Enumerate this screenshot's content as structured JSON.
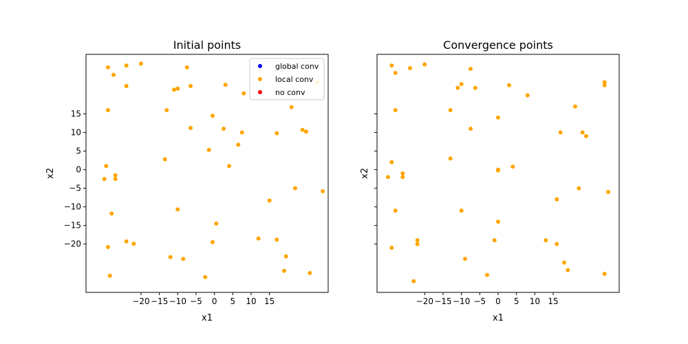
{
  "chart_data": [
    {
      "type": "scatter",
      "title": "Initial points",
      "xlabel": "x1",
      "ylabel": "x2",
      "xlim": [
        -35,
        31
      ],
      "ylim": [
        -33,
        31
      ],
      "x_ticks": [
        -20,
        -15,
        -10,
        -5,
        0,
        5,
        10,
        15
      ],
      "y_ticks": [
        15,
        10,
        5,
        0,
        -5,
        -10,
        -15,
        -20
      ],
      "legend": {
        "position": "top-right",
        "entries": [
          {
            "label": "global conv",
            "color": "#0000ff"
          },
          {
            "label": "local conv",
            "color": "#ffa500"
          },
          {
            "label": "no conv",
            "color": "#ff0000"
          }
        ]
      },
      "series": [
        {
          "name": "local conv",
          "color": "#ffa500",
          "points": [
            [
              -29,
              27.5
            ],
            [
              -27.5,
              25.5
            ],
            [
              -24,
              28
            ],
            [
              -20,
              28.5
            ],
            [
              -7.5,
              27.5
            ],
            [
              -24,
              22.5
            ],
            [
              -6.5,
              22.5
            ],
            [
              -11,
              21.5
            ],
            [
              -10,
              21.8
            ],
            [
              3,
              22.8
            ],
            [
              8,
              20.5
            ],
            [
              -29,
              16
            ],
            [
              -13,
              16
            ],
            [
              -0.5,
              14.5
            ],
            [
              21,
              16.8
            ],
            [
              -6.5,
              11.2
            ],
            [
              2.5,
              11
            ],
            [
              7.5,
              10
            ],
            [
              17,
              9.8
            ],
            [
              24,
              10.7
            ],
            [
              25,
              10.2
            ],
            [
              28,
              23.5
            ],
            [
              -1.5,
              5.3
            ],
            [
              6.5,
              6.7
            ],
            [
              -13.5,
              2.8
            ],
            [
              -29.5,
              1
            ],
            [
              4,
              1
            ],
            [
              -27,
              -1.5
            ],
            [
              -27,
              -2.5
            ],
            [
              -30,
              -2.5
            ],
            [
              22,
              -5
            ],
            [
              29.5,
              -5.8
            ],
            [
              15,
              -8.3
            ],
            [
              -10,
              -10.7
            ],
            [
              -28,
              -11.8
            ],
            [
              0.5,
              -14.5
            ],
            [
              -24,
              -19.3
            ],
            [
              -22,
              -19.9
            ],
            [
              -0.5,
              -19.5
            ],
            [
              -29,
              -20.8
            ],
            [
              12,
              -18.5
            ],
            [
              17,
              -18.8
            ],
            [
              -12,
              -23.5
            ],
            [
              -8.5,
              -24
            ],
            [
              19.5,
              -23.3
            ],
            [
              19,
              -27.2
            ],
            [
              26,
              -27.8
            ],
            [
              -28.5,
              -28.5
            ],
            [
              -2.5,
              -28.9
            ]
          ]
        }
      ]
    },
    {
      "type": "scatter",
      "title": "Convergence points",
      "xlabel": "x1",
      "ylabel": "x2",
      "xlim": [
        -33,
        33
      ],
      "ylim": [
        -33,
        31
      ],
      "x_ticks": [
        -20,
        -15,
        -10,
        -5,
        0,
        5,
        10,
        15
      ],
      "y_ticks": [
        15,
        10,
        5,
        0,
        -5,
        -10,
        -15,
        -20
      ],
      "series": [
        {
          "name": "local conv",
          "color": "#ffa500",
          "points": [
            [
              -29,
              28
            ],
            [
              -28,
              26
            ],
            [
              -24,
              27.3
            ],
            [
              -20,
              28.3
            ],
            [
              -7.5,
              27.1
            ],
            [
              -10,
              23
            ],
            [
              -11,
              22
            ],
            [
              -6.2,
              22
            ],
            [
              3,
              22.7
            ],
            [
              8,
              20
            ],
            [
              -28,
              16
            ],
            [
              -13,
              16
            ],
            [
              0,
              14
            ],
            [
              21,
              17
            ],
            [
              -7.5,
              11
            ],
            [
              17,
              10
            ],
            [
              23,
              10
            ],
            [
              24,
              9
            ],
            [
              29,
              23.5
            ],
            [
              29,
              22.7
            ],
            [
              -13,
              3
            ],
            [
              -29,
              2
            ],
            [
              -26,
              -1
            ],
            [
              -26,
              -2
            ],
            [
              -30,
              -2
            ],
            [
              0,
              0
            ],
            [
              0,
              -0.2
            ],
            [
              4,
              0.8
            ],
            [
              22,
              -5
            ],
            [
              30,
              -6
            ],
            [
              16,
              -8
            ],
            [
              -10,
              -11
            ],
            [
              -28,
              -11
            ],
            [
              0,
              -14
            ],
            [
              -22,
              -19
            ],
            [
              -22,
              -20
            ],
            [
              -1,
              -19
            ],
            [
              -29,
              -21
            ],
            [
              13,
              -19
            ],
            [
              16,
              -20
            ],
            [
              -9,
              -24
            ],
            [
              18,
              -25
            ],
            [
              19,
              -27
            ],
            [
              29,
              -28
            ],
            [
              -23,
              -30
            ],
            [
              -3,
              -28.3
            ]
          ]
        }
      ]
    }
  ]
}
